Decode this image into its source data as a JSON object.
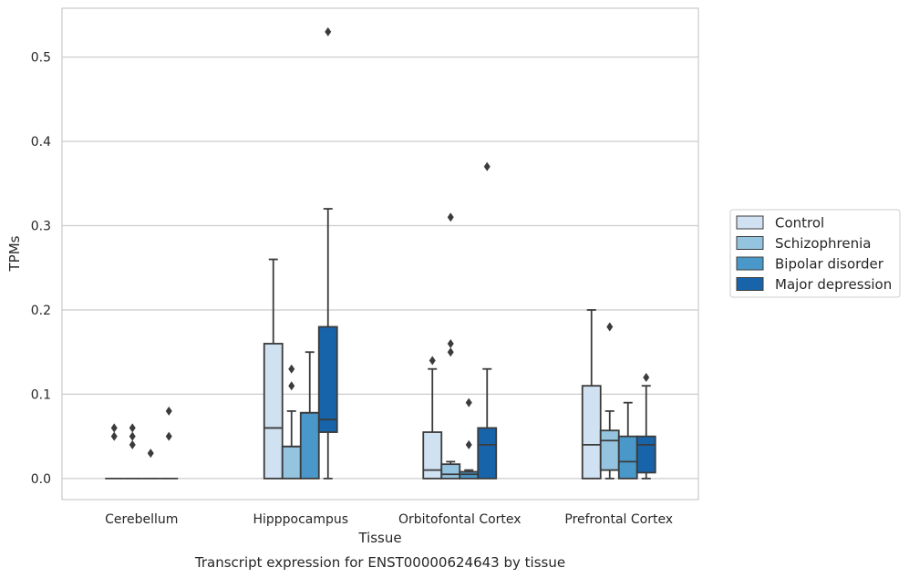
{
  "chart_data": {
    "type": "boxplot",
    "xlabel": "Tissue",
    "ylabel": "TPMs",
    "caption": "Transcript expression for ENST00000624643 by tissue",
    "ylim": [
      -0.025,
      0.558
    ],
    "yticks": [
      0.0,
      0.1,
      0.2,
      0.3,
      0.4,
      0.5
    ],
    "ytick_labels": [
      "0.0",
      "0.1",
      "0.2",
      "0.3",
      "0.4",
      "0.5"
    ],
    "grid": "horizontal",
    "legend_position": "right",
    "categories": [
      "Cerebellum",
      "Hipppocampus",
      "Orbitofontal Cortex",
      "Prefrontal Cortex"
    ],
    "series": [
      {
        "name": "Control",
        "color": "#d0e1f2",
        "boxes": [
          {
            "q1": 0,
            "median": 0,
            "q3": 0,
            "whisker_low": 0,
            "whisker_high": 0,
            "outliers": [
              0.05,
              0.06
            ]
          },
          {
            "q1": 0,
            "median": 0.06,
            "q3": 0.16,
            "whisker_low": 0,
            "whisker_high": 0.26,
            "outliers": []
          },
          {
            "q1": 0,
            "median": 0.01,
            "q3": 0.055,
            "whisker_low": 0,
            "whisker_high": 0.13,
            "outliers": [
              0.14
            ]
          },
          {
            "q1": 0,
            "median": 0.04,
            "q3": 0.11,
            "whisker_low": 0,
            "whisker_high": 0.2,
            "outliers": []
          }
        ]
      },
      {
        "name": "Schizophrenia",
        "color": "#94c4df",
        "boxes": [
          {
            "q1": 0,
            "median": 0,
            "q3": 0,
            "whisker_low": 0,
            "whisker_high": 0,
            "outliers": [
              0.04,
              0.05,
              0.06
            ]
          },
          {
            "q1": 0,
            "median": 0.038,
            "q3": 0.038,
            "whisker_low": 0,
            "whisker_high": 0.08,
            "outliers": [
              0.11,
              0.13
            ]
          },
          {
            "q1": 0,
            "median": 0.005,
            "q3": 0.017,
            "whisker_low": 0,
            "whisker_high": 0.02,
            "outliers": [
              0.15,
              0.16,
              0.31
            ]
          },
          {
            "q1": 0.01,
            "median": 0.045,
            "q3": 0.057,
            "whisker_low": 0,
            "whisker_high": 0.08,
            "outliers": [
              0.18
            ]
          }
        ]
      },
      {
        "name": "Bipolar disorder",
        "color": "#4a98c9",
        "boxes": [
          {
            "q1": 0,
            "median": 0,
            "q3": 0,
            "whisker_low": 0,
            "whisker_high": 0,
            "outliers": [
              0.03
            ]
          },
          {
            "q1": 0,
            "median": 0.078,
            "q3": 0.078,
            "whisker_low": 0,
            "whisker_high": 0.15,
            "outliers": []
          },
          {
            "q1": 0,
            "median": 0.005,
            "q3": 0.008,
            "whisker_low": 0,
            "whisker_high": 0.01,
            "outliers": [
              0.04,
              0.09
            ]
          },
          {
            "q1": 0,
            "median": 0.02,
            "q3": 0.05,
            "whisker_low": 0,
            "whisker_high": 0.09,
            "outliers": []
          }
        ]
      },
      {
        "name": "Major depression",
        "color": "#1764ab",
        "boxes": [
          {
            "q1": 0,
            "median": 0,
            "q3": 0,
            "whisker_low": 0,
            "whisker_high": 0,
            "outliers": [
              0.05,
              0.08
            ]
          },
          {
            "q1": 0.055,
            "median": 0.07,
            "q3": 0.18,
            "whisker_low": 0,
            "whisker_high": 0.32,
            "outliers": [
              0.53
            ]
          },
          {
            "q1": 0,
            "median": 0.04,
            "q3": 0.06,
            "whisker_low": 0,
            "whisker_high": 0.13,
            "outliers": [
              0.37
            ]
          },
          {
            "q1": 0.007,
            "median": 0.04,
            "q3": 0.05,
            "whisker_low": 0,
            "whisker_high": 0.11,
            "outliers": [
              0.12
            ]
          }
        ]
      }
    ]
  }
}
